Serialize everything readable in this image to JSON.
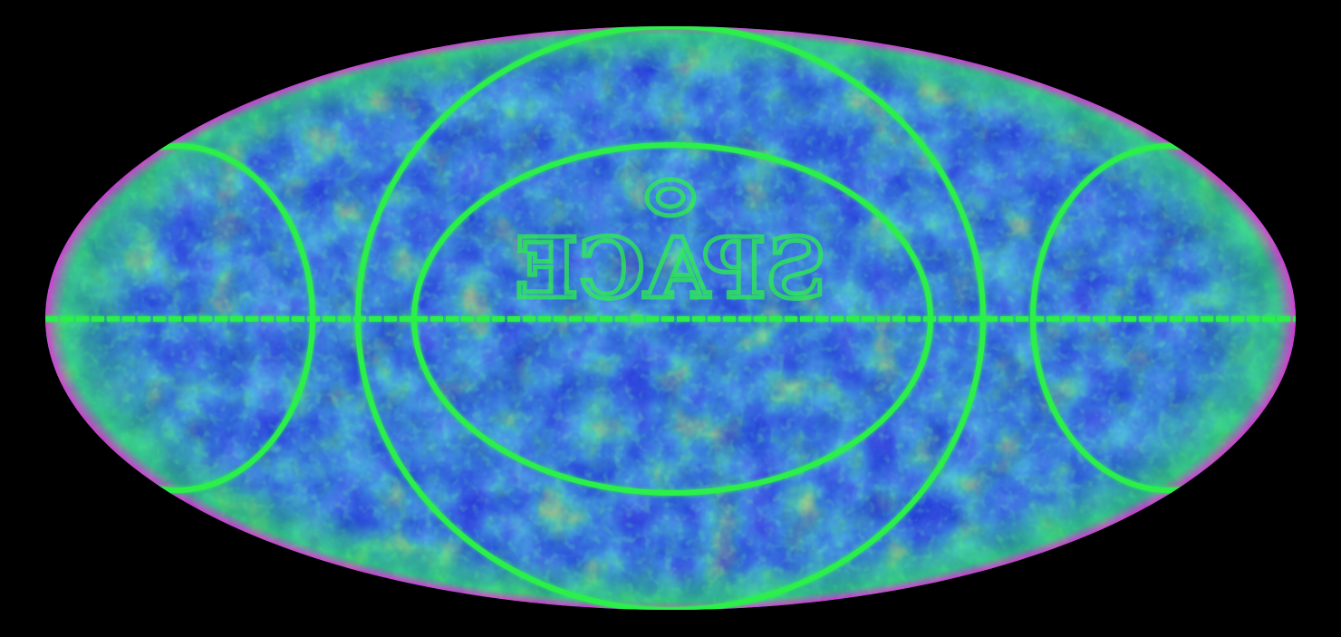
{
  "map": {
    "projection": "mollweide",
    "colors": {
      "background": "#000000",
      "deep": "#3a1a78",
      "base": "#1e32d6",
      "mid": "#2f7fe0",
      "cyan": "#22c0b0",
      "green": "#2cf04a",
      "yellow": "#e6f02a",
      "red": "#ff2a2a",
      "magenta": "#ff2ad2"
    },
    "grid": {
      "equator": true,
      "meridian_rings": 3,
      "color": "#2cf04a"
    },
    "watermark": {
      "text": "SPACE",
      "mirrored": true,
      "emblem": "ring-icon"
    }
  }
}
